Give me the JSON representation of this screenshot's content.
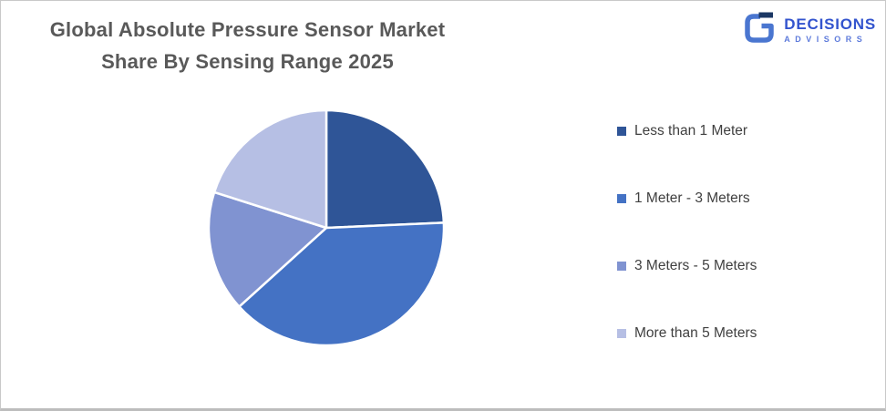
{
  "page": {
    "title_line1": "Global Absolute Pressure Sensor Market",
    "title_line2": "Share By Sensing Range 2025"
  },
  "logo": {
    "wordmark": "DECISIONS",
    "tagline": "ADVISORS",
    "icon": "g-mark-icon",
    "colors": {
      "wordmark": "#3354ce",
      "tagline": "#5e7bdb",
      "mark": "#4a76d0",
      "mark_bar": "#1b3764"
    }
  },
  "chart_data": {
    "type": "pie",
    "title": "Global Absolute Pressure Sensor Market Share By Sensing Range 2025",
    "categories": [
      "Less than 1 Meter",
      "1 Meter - 3 Meters",
      "3 Meters - 5 Meters",
      "More than 5 Meters"
    ],
    "values": [
      24.3,
      39.0,
      16.6,
      20.1
    ],
    "unit": "percent_estimated_from_angles",
    "colors": [
      "#2f5597",
      "#4472c4",
      "#8093d1",
      "#b6bfe4"
    ],
    "start_angle_deg": 0,
    "direction": "clockwise",
    "legend_position": "right",
    "slice_border_color": "#ffffff",
    "data_labels": false
  },
  "legend": {
    "items": [
      {
        "label": "Less than 1 Meter",
        "color": "#2f5597"
      },
      {
        "label": "1 Meter - 3 Meters",
        "color": "#4472c4"
      },
      {
        "label": "3 Meters - 5 Meters",
        "color": "#8093d1"
      },
      {
        "label": "More than 5 Meters",
        "color": "#b6bfe4"
      }
    ]
  }
}
